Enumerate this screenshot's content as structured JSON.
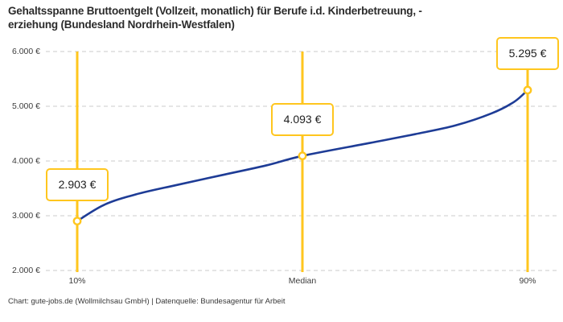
{
  "header": {
    "title_line1": "Gehaltsspanne Bruttoentgelt (Vollzeit, monatlich) für Berufe i.d. Kinderbetreuung, -",
    "title_line2": "erziehung (Bundesland Nordrhein-Westfalen)"
  },
  "footer": {
    "credit": "Chart: gute-jobs.de (Wollmilchsau GmbH) | Datenquelle: Bundesagentur für Arbeit"
  },
  "colors": {
    "accent_yellow": "#ffc61e",
    "curve_blue": "#1e3c96",
    "grid_gray": "#cbcbcb",
    "text_dark": "#2b2b2b",
    "axis_text": "#3d3d3d"
  },
  "chart_data": {
    "type": "line",
    "title": "Gehaltsspanne Bruttoentgelt (Vollzeit, monatlich) für Berufe i.d. Kinderbetreuung, -erziehung (Bundesland Nordrhein-Westfalen)",
    "source": "Chart: gute-jobs.de (Wollmilchsau GmbH) | Datenquelle: Bundesagentur für Arbeit",
    "unit": "€",
    "ylim": [
      2000,
      6000
    ],
    "grid": "horizontal-dashed",
    "legend": "none",
    "y_ticks": [
      {
        "value": 2000,
        "label": "2.000 €"
      },
      {
        "value": 3000,
        "label": "3.000 €"
      },
      {
        "value": 4000,
        "label": "4.000 €"
      },
      {
        "value": 5000,
        "label": "5.000 €"
      },
      {
        "value": 6000,
        "label": "6.000 €"
      }
    ],
    "x_categories": [
      "10%",
      "Median",
      "90%"
    ],
    "points": [
      {
        "label": "10%",
        "x_frac": 0,
        "value": 2903,
        "display": "2.903 €"
      },
      {
        "label": "Median",
        "x_frac": 0.5,
        "value": 4093,
        "display": "4.093 €"
      },
      {
        "label": "90%",
        "x_frac": 1,
        "value": 5295,
        "display": "5.295 €"
      }
    ],
    "curve_samples": [
      [
        0,
        2903
      ],
      [
        0.06,
        3200
      ],
      [
        0.13,
        3390
      ],
      [
        0.22,
        3560
      ],
      [
        0.32,
        3740
      ],
      [
        0.42,
        3920
      ],
      [
        0.5,
        4093
      ],
      [
        0.65,
        4330
      ],
      [
        0.75,
        4490
      ],
      [
        0.84,
        4650
      ],
      [
        0.92,
        4870
      ],
      [
        0.97,
        5080
      ],
      [
        1,
        5295
      ]
    ]
  }
}
